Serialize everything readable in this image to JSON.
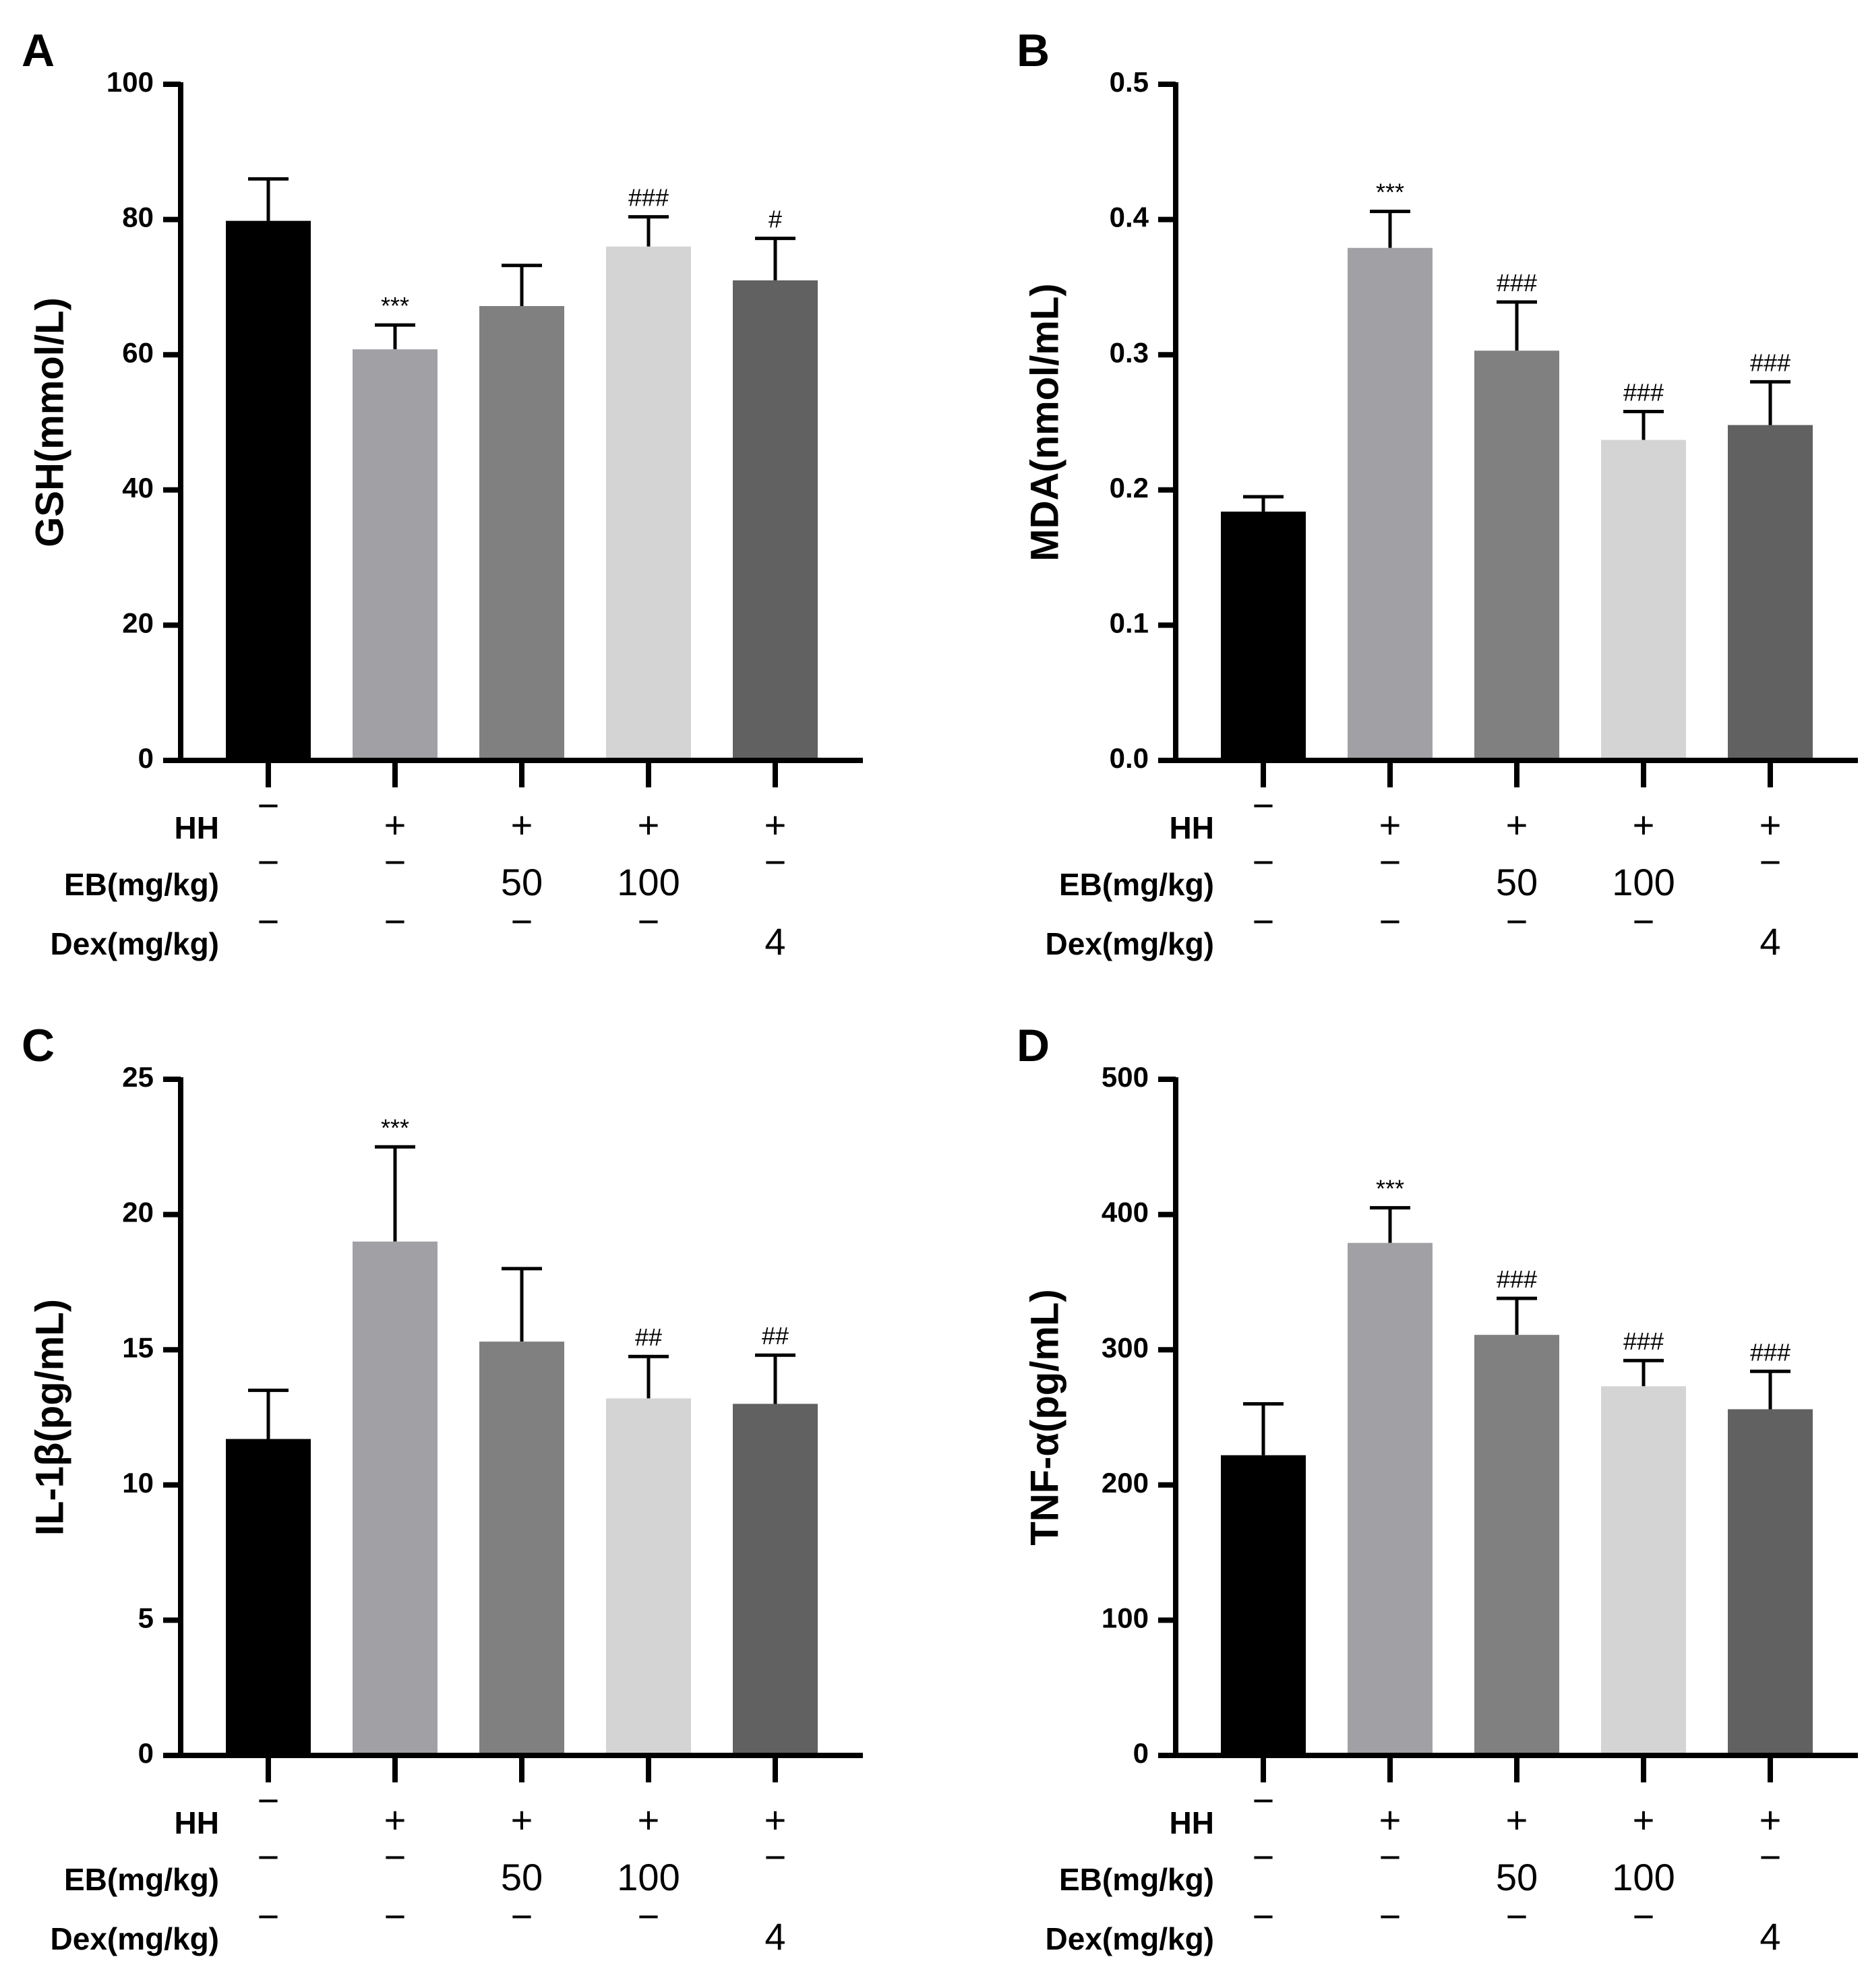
{
  "chart_data": [
    {
      "type": "bar",
      "panel_label": "A",
      "ylabel": "GSH(mmol/L)",
      "ylim": [
        0,
        100
      ],
      "yticks": [
        0,
        20,
        40,
        60,
        80,
        100
      ],
      "ytick_labels": [
        "0",
        "20",
        "40",
        "60",
        "80",
        "100"
      ],
      "row_labels": [
        "HH",
        "EB(mg/kg)",
        "Dex(mg/kg)"
      ],
      "groups": [
        {
          "HH": "−",
          "EB": "−",
          "Dex": "−"
        },
        {
          "HH": "+",
          "EB": "−",
          "Dex": "−"
        },
        {
          "HH": "+",
          "EB": "50",
          "Dex": "−"
        },
        {
          "HH": "+",
          "EB": "100",
          "Dex": "−"
        },
        {
          "HH": "+",
          "EB": "−",
          "Dex": "4"
        }
      ],
      "values": [
        79.8,
        60.8,
        67.2,
        76.0,
        71.0
      ],
      "errors": [
        6.2,
        3.6,
        6.0,
        4.4,
        6.2
      ],
      "annotations": [
        "",
        "***",
        "",
        "###",
        "#"
      ],
      "colors": [
        "#000000",
        "#a1a1a5",
        "#808080",
        "#d4d4d4",
        "#616161"
      ]
    },
    {
      "type": "bar",
      "panel_label": "B",
      "ylabel": "MDA(nmol/mL)",
      "ylim": [
        0,
        0.5
      ],
      "yticks": [
        0,
        0.1,
        0.2,
        0.3,
        0.4,
        0.5
      ],
      "ytick_labels": [
        "0.0",
        "0.1",
        "0.2",
        "0.3",
        "0.4",
        "0.5"
      ],
      "row_labels": [
        "HH",
        "EB(mg/kg)",
        "Dex(mg/kg)"
      ],
      "groups": [
        {
          "HH": "−",
          "EB": "−",
          "Dex": "−"
        },
        {
          "HH": "+",
          "EB": "−",
          "Dex": "−"
        },
        {
          "HH": "+",
          "EB": "50",
          "Dex": "−"
        },
        {
          "HH": "+",
          "EB": "100",
          "Dex": "−"
        },
        {
          "HH": "+",
          "EB": "−",
          "Dex": "4"
        }
      ],
      "values": [
        0.184,
        0.379,
        0.303,
        0.237,
        0.248
      ],
      "errors": [
        0.011,
        0.027,
        0.036,
        0.021,
        0.032
      ],
      "annotations": [
        "",
        "***",
        "###",
        "###",
        "###"
      ],
      "colors": [
        "#000000",
        "#a1a1a5",
        "#808080",
        "#d4d4d4",
        "#616161"
      ]
    },
    {
      "type": "bar",
      "panel_label": "C",
      "ylabel": "IL-1β(pg/mL)",
      "ylim": [
        0,
        25
      ],
      "yticks": [
        0,
        5,
        10,
        15,
        20,
        25
      ],
      "ytick_labels": [
        "0",
        "5",
        "10",
        "15",
        "20",
        "25"
      ],
      "row_labels": [
        "HH",
        "EB(mg/kg)",
        "Dex(mg/kg)"
      ],
      "groups": [
        {
          "HH": "−",
          "EB": "−",
          "Dex": "−"
        },
        {
          "HH": "+",
          "EB": "−",
          "Dex": "−"
        },
        {
          "HH": "+",
          "EB": "50",
          "Dex": "−"
        },
        {
          "HH": "+",
          "EB": "100",
          "Dex": "−"
        },
        {
          "HH": "+",
          "EB": "−",
          "Dex": "4"
        }
      ],
      "values": [
        11.7,
        19.0,
        15.3,
        13.2,
        13.0
      ],
      "errors": [
        1.8,
        3.5,
        2.7,
        1.55,
        1.8
      ],
      "annotations": [
        "",
        "***",
        "",
        "##",
        "##"
      ],
      "colors": [
        "#000000",
        "#a1a1a5",
        "#808080",
        "#d4d4d4",
        "#616161"
      ]
    },
    {
      "type": "bar",
      "panel_label": "D",
      "ylabel": "TNF-α(pg/mL)",
      "ylim": [
        0,
        500
      ],
      "yticks": [
        0,
        100,
        200,
        300,
        400,
        500
      ],
      "ytick_labels": [
        "0",
        "100",
        "200",
        "300",
        "400",
        "500"
      ],
      "row_labels": [
        "HH",
        "EB(mg/kg)",
        "Dex(mg/kg)"
      ],
      "groups": [
        {
          "HH": "−",
          "EB": "−",
          "Dex": "−"
        },
        {
          "HH": "+",
          "EB": "−",
          "Dex": "−"
        },
        {
          "HH": "+",
          "EB": "50",
          "Dex": "−"
        },
        {
          "HH": "+",
          "EB": "100",
          "Dex": "−"
        },
        {
          "HH": "+",
          "EB": "−",
          "Dex": "4"
        }
      ],
      "values": [
        222,
        379,
        311,
        273,
        256
      ],
      "errors": [
        38,
        26,
        27,
        19,
        28
      ],
      "annotations": [
        "",
        "***",
        "###",
        "###",
        "###"
      ],
      "colors": [
        "#000000",
        "#a1a1a5",
        "#808080",
        "#d4d4d4",
        "#616161"
      ]
    }
  ]
}
